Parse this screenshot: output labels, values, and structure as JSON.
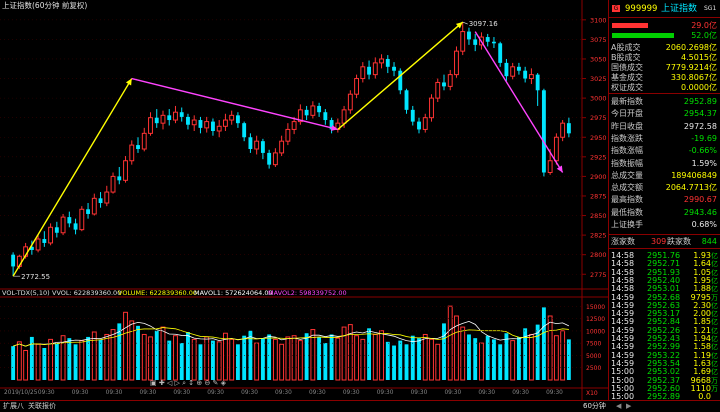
{
  "window_title": "上证指数(60分钟 前复权)",
  "code": "999999",
  "name": "上证指数",
  "tag": "SG1",
  "chart_data": {
    "type": "candlestick",
    "title": "上证指数(60分钟 前复权)",
    "ylim": [
      2760,
      3110
    ],
    "price_axis_labels": [
      "3100",
      "3075",
      "3050",
      "3025",
      "3000",
      "2975",
      "2950",
      "2925",
      "2900",
      "2875",
      "2850",
      "2825",
      "2800",
      "2775"
    ],
    "high_label": "3097.16",
    "low_label": "2772.55",
    "candles": [
      [
        2800,
        2785,
        2803,
        2772.55
      ],
      [
        2785,
        2798,
        2800,
        2782
      ],
      [
        2798,
        2810,
        2815,
        2795
      ],
      [
        2810,
        2806,
        2818,
        2800
      ],
      [
        2806,
        2820,
        2826,
        2803
      ],
      [
        2820,
        2815,
        2830,
        2810
      ],
      [
        2815,
        2835,
        2840,
        2812
      ],
      [
        2835,
        2828,
        2842,
        2822
      ],
      [
        2828,
        2848,
        2852,
        2825
      ],
      [
        2848,
        2840,
        2855,
        2835
      ],
      [
        2840,
        2832,
        2846,
        2826
      ],
      [
        2832,
        2858,
        2862,
        2830
      ],
      [
        2858,
        2852,
        2866,
        2846
      ],
      [
        2852,
        2872,
        2878,
        2850
      ],
      [
        2872,
        2866,
        2880,
        2860
      ],
      [
        2866,
        2880,
        2888,
        2862
      ],
      [
        2880,
        2900,
        2905,
        2878
      ],
      [
        2900,
        2895,
        2912,
        2890
      ],
      [
        2895,
        2920,
        2926,
        2892
      ],
      [
        2920,
        2940,
        2946,
        2915
      ],
      [
        2940,
        2935,
        2950,
        2930
      ],
      [
        2935,
        2955,
        2962,
        2932
      ],
      [
        2955,
        2975,
        2982,
        2952
      ],
      [
        2975,
        2968,
        2986,
        2962
      ],
      [
        2968,
        2978,
        2984,
        2960
      ],
      [
        2978,
        2972,
        2986,
        2965
      ],
      [
        2972,
        2982,
        2990,
        2968
      ],
      [
        2982,
        2976,
        2988,
        2970
      ],
      [
        2976,
        2966,
        2980,
        2960
      ],
      [
        2966,
        2972,
        2978,
        2958
      ],
      [
        2972,
        2962,
        2976,
        2955
      ],
      [
        2962,
        2970,
        2976,
        2956
      ],
      [
        2970,
        2958,
        2974,
        2952
      ],
      [
        2958,
        2964,
        2972,
        2950
      ],
      [
        2964,
        2972,
        2980,
        2958
      ],
      [
        2972,
        2978,
        2984,
        2966
      ],
      [
        2978,
        2968,
        2982,
        2962
      ],
      [
        2968,
        2950,
        2970,
        2945
      ],
      [
        2950,
        2935,
        2955,
        2930
      ],
      [
        2935,
        2945,
        2952,
        2928
      ],
      [
        2945,
        2930,
        2948,
        2922
      ],
      [
        2930,
        2915,
        2934,
        2910
      ],
      [
        2915,
        2930,
        2936,
        2912
      ],
      [
        2930,
        2945,
        2952,
        2926
      ],
      [
        2945,
        2960,
        2968,
        2940
      ],
      [
        2960,
        2970,
        2976,
        2954
      ],
      [
        2970,
        2985,
        2992,
        2966
      ],
      [
        2985,
        2978,
        2990,
        2972
      ],
      [
        2978,
        2990,
        2996,
        2974
      ],
      [
        2990,
        2982,
        2994,
        2976
      ],
      [
        2982,
        2972,
        2986,
        2966
      ],
      [
        2972,
        2960,
        2975,
        2955
      ],
      [
        2960,
        2968,
        2974,
        2956
      ],
      [
        2968,
        2985,
        2990,
        2962
      ],
      [
        2985,
        3005,
        3010,
        2980
      ],
      [
        3005,
        3025,
        3030,
        3000
      ],
      [
        3025,
        3040,
        3046,
        3020
      ],
      [
        3040,
        3030,
        3048,
        3024
      ],
      [
        3030,
        3045,
        3052,
        3025
      ],
      [
        3045,
        3050,
        3056,
        3038
      ],
      [
        3050,
        3040,
        3055,
        3032
      ],
      [
        3040,
        3035,
        3046,
        3028
      ],
      [
        3035,
        3010,
        3038,
        3005
      ],
      [
        3010,
        2985,
        3012,
        2980
      ],
      [
        2985,
        2970,
        2990,
        2965
      ],
      [
        2970,
        2960,
        2975,
        2955
      ],
      [
        2960,
        2975,
        2980,
        2956
      ],
      [
        2975,
        3000,
        3005,
        2970
      ],
      [
        3000,
        3020,
        3025,
        2995
      ],
      [
        3020,
        3015,
        3030,
        3010
      ],
      [
        3015,
        3030,
        3036,
        3010
      ],
      [
        3030,
        3060,
        3066,
        3026
      ],
      [
        3060,
        3085,
        3097.16,
        3055
      ],
      [
        3085,
        3075,
        3090,
        3068
      ],
      [
        3075,
        3068,
        3082,
        3060
      ],
      [
        3068,
        3078,
        3084,
        3062
      ],
      [
        3078,
        3072,
        3082,
        3066
      ],
      [
        3072,
        3070,
        3078,
        3064
      ],
      [
        3070,
        3045,
        3072,
        3040
      ],
      [
        3045,
        3028,
        3050,
        3022
      ],
      [
        3028,
        3040,
        3045,
        3024
      ],
      [
        3040,
        3035,
        3045,
        3030
      ],
      [
        3035,
        3025,
        3040,
        3020
      ],
      [
        3025,
        3030,
        3038,
        3018
      ],
      [
        3030,
        3010,
        3032,
        2990
      ],
      [
        3010,
        2905,
        3012,
        2900
      ],
      [
        2905,
        2920,
        2935,
        2902
      ],
      [
        2920,
        2950,
        2955,
        2915
      ],
      [
        2950,
        2968,
        2972,
        2945
      ],
      [
        2968,
        2955,
        2975,
        2950
      ]
    ],
    "trend_lines": [
      {
        "color": "#ffff00",
        "points": [
          [
            0,
            2772.55
          ],
          [
            19,
            3025
          ]
        ]
      },
      {
        "color": "#ff44ff",
        "points": [
          [
            19,
            3025
          ],
          [
            52,
            2960
          ]
        ]
      },
      {
        "color": "#ffff00",
        "points": [
          [
            52,
            2960
          ],
          [
            72,
            3097.16
          ]
        ]
      },
      {
        "color": "#ff44ff",
        "points": [
          [
            74,
            3085
          ],
          [
            88,
            2905
          ]
        ]
      }
    ],
    "volume": {
      "header_label": "VOL-TDX(5,10)",
      "vvol": "VVOL: 622839360.00",
      "volume": "VOLUME: 622839360.00",
      "mavol1": "MAVOL1: 572624064.00",
      "mavol2": "MAVOL2: 598339752.00",
      "values": [
        55,
        62,
        48,
        70,
        58,
        52,
        66,
        60,
        72,
        68,
        58,
        64,
        70,
        78,
        66,
        74,
        82,
        92,
        110,
        96,
        88,
        74,
        70,
        80,
        86,
        64,
        72,
        60,
        78,
        66,
        58,
        70,
        64,
        62,
        76,
        66,
        58,
        72,
        80,
        60,
        68,
        74,
        66,
        58,
        70,
        72,
        64,
        76,
        82,
        70,
        60,
        74,
        68,
        86,
        90,
        72,
        66,
        84,
        74,
        80,
        62,
        56,
        64,
        58,
        72,
        68,
        74,
        66,
        58,
        92,
        120,
        104,
        86,
        74,
        68,
        60,
        72,
        66,
        58,
        76,
        64,
        70,
        84,
        74,
        90,
        118,
        104,
        72,
        80,
        66
      ],
      "axis_labels": [
        "15000",
        "12500",
        "10000",
        "7500",
        "5000",
        "2500"
      ],
      "axis_unit": "X10"
    },
    "time_labels": [
      "2019/10/25",
      "09:30",
      "09:30",
      "09:30",
      "09:30",
      "09:30",
      "09:30",
      "09:30",
      "09:30",
      "09:30",
      "09:30",
      "09:30",
      "09:30",
      "09:30",
      "09:30",
      "09:30",
      "09:30"
    ]
  },
  "side": {
    "lots": [
      {
        "value": "29.0亿",
        "color": "red"
      },
      {
        "value": "52.0亿",
        "color": "grn"
      }
    ],
    "turnover": [
      {
        "label": "A股成交",
        "value": "2060.2698亿"
      },
      {
        "label": "B股成交",
        "value": "4.5015亿"
      },
      {
        "label": "国债成交",
        "value": "7779.9214亿"
      },
      {
        "label": "基金成交",
        "value": "330.8067亿"
      },
      {
        "label": "权证成交",
        "value": "0.0000亿"
      }
    ],
    "stats": [
      {
        "label": "最新指数",
        "value": "2952.89",
        "cls": "grn"
      },
      {
        "label": "今日开盘",
        "value": "2954.37",
        "cls": "grn"
      },
      {
        "label": "昨日收盘",
        "value": "2972.58",
        "cls": "wht"
      },
      {
        "label": "指数涨跌",
        "value": "-19.69",
        "cls": "grn"
      },
      {
        "label": "指数涨幅",
        "value": "-0.66%",
        "cls": "grn"
      },
      {
        "label": "指数振幅",
        "value": "1.59%",
        "cls": "wht"
      },
      {
        "label": "总成交量",
        "value": "189406849",
        "cls": "yel"
      },
      {
        "label": "总成交额",
        "value": "2064.7713亿",
        "cls": "yel"
      },
      {
        "label": "最高指数",
        "value": "2990.67",
        "cls": "red"
      },
      {
        "label": "最低指数",
        "value": "2943.46",
        "cls": "grn"
      },
      {
        "label": "上证换手",
        "value": "0.68%",
        "cls": "wht"
      }
    ],
    "updown": {
      "up_label": "涨家数",
      "up": "309",
      "down_label": "跌家数",
      "down": "844"
    },
    "ticks": [
      {
        "t": "14:58",
        "p": "2951.76",
        "v": "1.93",
        "u": "亿"
      },
      {
        "t": "14:58",
        "p": "2952.71",
        "v": "1.64",
        "u": "亿"
      },
      {
        "t": "14:58",
        "p": "2951.93",
        "v": "1.05",
        "u": "亿"
      },
      {
        "t": "14:58",
        "p": "2952.40",
        "v": "1.95",
        "u": "亿"
      },
      {
        "t": "14:58",
        "p": "2953.01",
        "v": "1.88",
        "u": "亿"
      },
      {
        "t": "14:59",
        "p": "2952.68",
        "v": "9795",
        "u": "万"
      },
      {
        "t": "14:59",
        "p": "2952.63",
        "v": "2.30",
        "u": "亿"
      },
      {
        "t": "14:59",
        "p": "2953.17",
        "v": "2.00",
        "u": "亿"
      },
      {
        "t": "14:59",
        "p": "2952.84",
        "v": "1.85",
        "u": "亿"
      },
      {
        "t": "14:59",
        "p": "2952.26",
        "v": "1.21",
        "u": "亿"
      },
      {
        "t": "14:59",
        "p": "2952.43",
        "v": "1.94",
        "u": "亿"
      },
      {
        "t": "14:59",
        "p": "2952.99",
        "v": "1.58",
        "u": "亿"
      },
      {
        "t": "14:59",
        "p": "2953.22",
        "v": "1.19",
        "u": "亿"
      },
      {
        "t": "14:59",
        "p": "2953.54",
        "v": "1.63",
        "u": "亿"
      },
      {
        "t": "15:00",
        "p": "2953.02",
        "v": "1.69",
        "u": "亿"
      },
      {
        "t": "15:00",
        "p": "2952.37",
        "v": "9668",
        "u": "万"
      },
      {
        "t": "15:00",
        "p": "2952.60",
        "v": "1110",
        "u": "万"
      },
      {
        "t": "15:00",
        "p": "2952.89",
        "v": "0.0",
        "u": ""
      }
    ]
  },
  "period_label": "60分钟",
  "toolbar": {
    "expand_label": "扩展八",
    "related_label": "关联报价"
  }
}
